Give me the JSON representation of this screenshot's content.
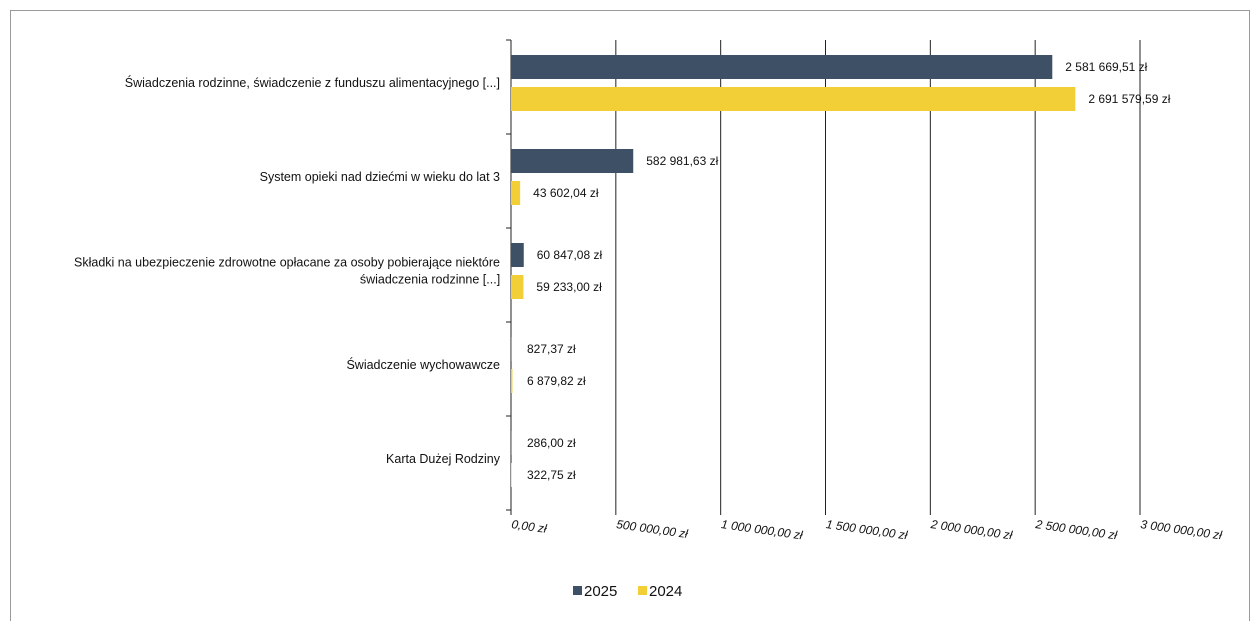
{
  "chart_data": {
    "type": "bar",
    "orientation": "horizontal",
    "categories": [
      "Świadczenia rodzinne, świadczenie z funduszu alimentacyjnego [...]",
      "System opieki nad dziećmi w wieku do lat 3",
      "Składki na ubezpieczenie zdrowotne opłacane za osoby pobierające niektóre świadczenia rodzinne [...]",
      "Świadczenie wychowawcze",
      "Karta Dużej Rodziny"
    ],
    "category_lines": [
      [
        "Świadczenia rodzinne, świadczenie z funduszu alimentacyjnego [...]"
      ],
      [
        "System opieki nad dziećmi w wieku do lat 3"
      ],
      [
        "Składki na ubezpieczenie zdrowotne opłacane za osoby pobierające niektóre",
        "świadczenia rodzinne [...]"
      ],
      [
        "Świadczenie wychowawcze"
      ],
      [
        "Karta Dużej Rodziny"
      ]
    ],
    "series": [
      {
        "name": "2025",
        "color": "#3d5066",
        "values": [
          2581669.51,
          582981.63,
          60847.08,
          827.37,
          286.0
        ],
        "labels": [
          "2 581 669,51 zł",
          "582 981,63 zł",
          "60 847,08 zł",
          "827,37 zł",
          "286,00 zł"
        ]
      },
      {
        "name": "2024",
        "color": "#f2cf36",
        "values": [
          2691579.59,
          43602.04,
          59233.0,
          6879.82,
          322.75
        ],
        "labels": [
          "2 691 579,59 zł",
          "43 602,04 zł",
          "59 233,00 zł",
          "6 879,82 zł",
          "322,75 zł"
        ]
      }
    ],
    "xlim": [
      0,
      3000000
    ],
    "xticks": [
      0,
      500000,
      1000000,
      1500000,
      2000000,
      2500000,
      3000000
    ],
    "xtick_labels": [
      "0,00 zł",
      "500 000,00 zł",
      "1 000 000,00 zł",
      "1 500 000,00 zł",
      "2 000 000,00 zł",
      "2 500 000,00 zł",
      "3 000 000,00 zł"
    ],
    "grid": true,
    "legend_position": "bottom-center",
    "title": "",
    "xlabel": "",
    "ylabel": ""
  }
}
